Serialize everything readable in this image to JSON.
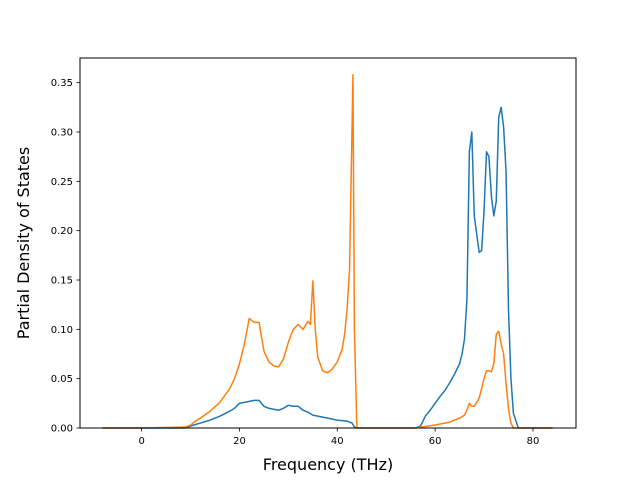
{
  "chart_data": {
    "type": "line",
    "title": "",
    "xlabel": "Frequency (THz)",
    "ylabel": "Partial Density of States",
    "xlim": [
      -12.6,
      88.8
    ],
    "ylim": [
      0,
      0.375
    ],
    "xticks": [
      0,
      20,
      40,
      60,
      80
    ],
    "xtick_labels": [
      "0",
      "20",
      "40",
      "60",
      "80"
    ],
    "yticks": [
      0,
      0.05,
      0.1,
      0.15,
      0.2,
      0.25,
      0.3,
      0.35
    ],
    "ytick_labels": [
      "0.00",
      "0.05",
      "0.10",
      "0.15",
      "0.20",
      "0.25",
      "0.30",
      "0.35"
    ],
    "grid": false,
    "legend": "none",
    "series": [
      {
        "color": "#1f77b4",
        "x": [
          -8,
          0,
          9,
          10,
          12,
          14,
          16,
          18,
          19,
          20,
          21,
          22,
          23,
          24,
          25,
          26,
          28,
          29,
          30,
          31,
          32,
          33,
          34,
          35,
          36,
          38,
          40,
          42,
          43,
          43.5,
          44,
          50,
          56,
          57,
          58,
          59,
          60,
          61,
          62,
          63,
          64,
          65,
          65.5,
          66,
          66.5,
          67,
          67.5,
          68,
          69,
          69.5,
          70,
          70.5,
          71,
          71.5,
          72,
          72.5,
          73,
          73.5,
          74,
          74.5,
          75,
          75.5,
          76,
          77,
          84
        ],
        "y": [
          0,
          0,
          0,
          0.002,
          0.005,
          0.008,
          0.012,
          0.017,
          0.02,
          0.025,
          0.026,
          0.027,
          0.028,
          0.028,
          0.022,
          0.02,
          0.018,
          0.02,
          0.023,
          0.022,
          0.022,
          0.018,
          0.016,
          0.013,
          0.012,
          0.01,
          0.008,
          0.007,
          0.005,
          0.001,
          0,
          0,
          0,
          0.002,
          0.012,
          0.018,
          0.025,
          0.032,
          0.038,
          0.046,
          0.055,
          0.065,
          0.075,
          0.09,
          0.13,
          0.28,
          0.3,
          0.215,
          0.178,
          0.18,
          0.22,
          0.28,
          0.275,
          0.235,
          0.215,
          0.23,
          0.315,
          0.325,
          0.305,
          0.26,
          0.12,
          0.05,
          0.015,
          0,
          0
        ]
      },
      {
        "color": "#ff7f0e",
        "x": [
          -8,
          0,
          9,
          10,
          11,
          12,
          14,
          16,
          18,
          19,
          20,
          21,
          22,
          23,
          24,
          25,
          26,
          27,
          28,
          29,
          30,
          31,
          32,
          33,
          34,
          34.5,
          35,
          35.5,
          36,
          37,
          38,
          39,
          40,
          41,
          41.5,
          42,
          42.5,
          43,
          43.2,
          43.5,
          44,
          50,
          56,
          60,
          63,
          65,
          66,
          66.5,
          67,
          67.5,
          68,
          69,
          70,
          70.5,
          71,
          71.5,
          72,
          72.5,
          73,
          73.5,
          74,
          74.5,
          75,
          75.5,
          76,
          77,
          84
        ],
        "y": [
          0,
          0,
          0.001,
          0.003,
          0.007,
          0.01,
          0.017,
          0.026,
          0.04,
          0.05,
          0.065,
          0.085,
          0.111,
          0.107,
          0.107,
          0.078,
          0.067,
          0.063,
          0.062,
          0.07,
          0.087,
          0.1,
          0.105,
          0.1,
          0.108,
          0.105,
          0.149,
          0.1,
          0.072,
          0.058,
          0.056,
          0.06,
          0.067,
          0.08,
          0.095,
          0.12,
          0.16,
          0.3,
          0.358,
          0.1,
          0,
          0,
          0,
          0.003,
          0.006,
          0.01,
          0.013,
          0.018,
          0.025,
          0.022,
          0.022,
          0.03,
          0.05,
          0.058,
          0.058,
          0.057,
          0.065,
          0.095,
          0.098,
          0.085,
          0.075,
          0.045,
          0.02,
          0.005,
          0,
          0,
          0
        ]
      }
    ]
  }
}
